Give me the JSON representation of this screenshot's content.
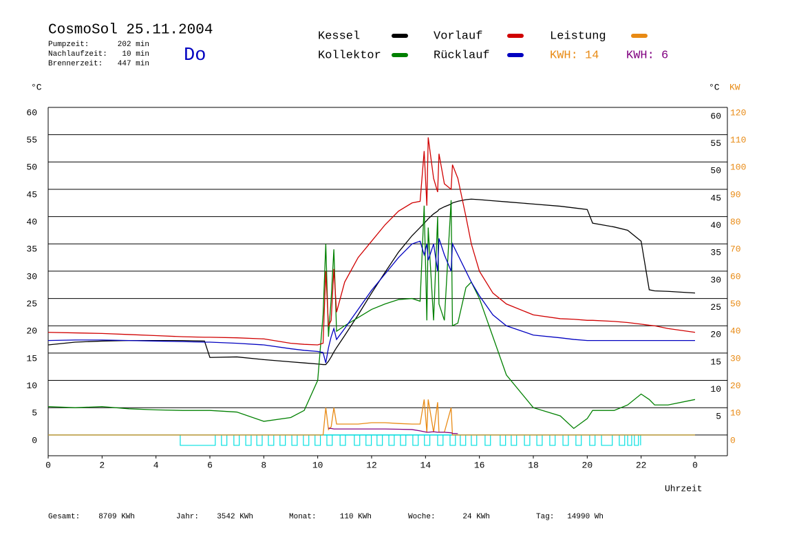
{
  "chart_data": {
    "type": "line",
    "title": "CosmoSol 25.11.2004",
    "weekday": "Do",
    "info": [
      [
        "Pumpzeit:",
        "202 min"
      ],
      [
        "Nachlaufzeit:",
        "10 min"
      ],
      [
        "Brennerzeit:",
        "447 min"
      ]
    ],
    "y_label": "°C",
    "y2_label_left": "°C",
    "y2_label": "KW",
    "x_label": "Uhrzeit",
    "energy_labels": [
      {
        "text": "KWH: 14",
        "color": "#e88a14"
      },
      {
        "text": "KWH: 6",
        "color": "#800080"
      }
    ],
    "footer": [
      [
        "Gesamt:",
        "8709 KWh"
      ],
      [
        "Jahr:",
        "3542 KWh"
      ],
      [
        "Monat:",
        "110 KWh"
      ],
      [
        "Woche:",
        "24 KWh"
      ],
      [
        "Tag:",
        "14990 Wh"
      ]
    ],
    "xlim": [
      0,
      24
    ],
    "xticks": [
      0,
      2,
      4,
      6,
      8,
      10,
      12,
      14,
      16,
      18,
      20,
      22,
      {
        "value": 24,
        "label": "0"
      }
    ],
    "ylim": [
      -3.8,
      60
    ],
    "yticks": [
      0,
      5,
      10,
      15,
      20,
      25,
      30,
      35,
      40,
      45,
      50,
      55,
      60
    ],
    "y2lim": [
      -7.6,
      120
    ],
    "y2ticks": [
      0,
      10,
      20,
      30,
      40,
      50,
      60,
      70,
      80,
      90,
      100,
      110,
      120
    ],
    "grid": true,
    "x": [
      0,
      1,
      2,
      3,
      4,
      5,
      5.8,
      6,
      7,
      8,
      9,
      9.5,
      10,
      10.2,
      10.3,
      10.4,
      10.5,
      10.6,
      10.7,
      11,
      11.5,
      12,
      12.5,
      13,
      13.5,
      13.8,
      13.95,
      14.05,
      14.1,
      14.3,
      14.45,
      14.5,
      14.7,
      14.95,
      15.0,
      15.2,
      15.5,
      15.7,
      16,
      16.5,
      17,
      18,
      19,
      19.5,
      20,
      20.2,
      21,
      21.5,
      22,
      22.3,
      22.5,
      23,
      24
    ],
    "series": [
      {
        "name": "Kessel",
        "color": "#000000",
        "values": [
          16.5,
          17,
          17.2,
          17.3,
          17.3,
          17.3,
          17.2,
          14.2,
          14.3,
          13.8,
          13.4,
          13.2,
          13,
          12.9,
          12.9,
          13.5,
          14.3,
          15.2,
          16,
          18.2,
          22,
          26,
          29.8,
          33.5,
          36.5,
          38,
          38.8,
          39.3,
          39.6,
          40.5,
          41,
          41.3,
          41.8,
          42.3,
          42.5,
          42.8,
          43.1,
          43.2,
          43.1,
          42.9,
          42.7,
          42.3,
          41.9,
          41.6,
          41.3,
          38.8,
          38.1,
          37.5,
          35.5,
          26.6,
          26.4,
          26.3,
          26.0
        ]
      },
      {
        "name": "Kollektor",
        "color": "#008000",
        "values": [
          5.2,
          5,
          5.2,
          4.8,
          4.6,
          4.5,
          4.5,
          4.5,
          4.2,
          2.5,
          3.2,
          4.5,
          10,
          22,
          35,
          18,
          25,
          34,
          19,
          20,
          21.5,
          23,
          24,
          24.8,
          25,
          24.5,
          42,
          21,
          38,
          21,
          40,
          24,
          21,
          43,
          20,
          20.5,
          27,
          28,
          25,
          18,
          11,
          5,
          3.5,
          1.2,
          3,
          4.5,
          4.5,
          5.5,
          7.5,
          6.5,
          5.5,
          5.5,
          6.5
        ]
      },
      {
        "name": "Vorlauf",
        "color": "#d00000",
        "values": [
          18.8,
          18.7,
          18.6,
          18.4,
          18.2,
          18.0,
          17.9,
          17.9,
          17.8,
          17.6,
          16.8,
          16.6,
          16.5,
          16.8,
          30,
          20,
          21,
          30.4,
          22.5,
          28,
          32.5,
          35.5,
          38.5,
          41,
          42.5,
          42.8,
          52,
          42,
          54.5,
          47,
          44.5,
          51.5,
          46,
          45,
          49.5,
          47,
          40,
          35,
          30,
          26,
          24,
          22,
          21.3,
          21.2,
          21,
          21,
          20.8,
          20.6,
          20.3,
          20.1,
          20,
          19.5,
          18.8
        ]
      },
      {
        "name": "Rücklauf",
        "color": "#0000c0",
        "values": [
          17.3,
          17.4,
          17.4,
          17.3,
          17.2,
          17.1,
          17,
          17,
          16.8,
          16.5,
          15.8,
          15.5,
          15.3,
          15.1,
          13.2,
          16,
          18,
          19.5,
          17.5,
          19.5,
          23,
          26.5,
          29.5,
          32.5,
          35,
          35.5,
          33,
          35,
          32,
          35,
          30,
          36,
          33,
          30,
          35,
          33,
          30,
          28,
          25.5,
          22,
          20,
          18.3,
          17.8,
          17.5,
          17.3,
          17.3,
          17.3,
          17.3,
          17.3,
          17.3,
          17.3,
          17.3,
          17.3
        ]
      },
      {
        "name": "Leistung",
        "color": "#e88a14",
        "axis": "y2",
        "values": [
          0,
          0,
          0,
          0,
          0,
          0,
          0,
          0,
          0,
          0,
          0,
          0,
          0,
          0,
          10,
          2,
          3,
          10,
          4,
          4,
          4,
          4.5,
          4.5,
          4.2,
          4,
          4,
          13,
          1,
          13,
          1,
          12,
          1,
          1,
          10,
          0,
          0,
          0,
          0,
          0,
          0,
          0,
          0,
          0,
          0,
          0,
          0,
          0,
          0,
          0,
          0,
          0,
          0,
          0
        ]
      },
      {
        "color": "#800080",
        "axis": "y2",
        "values": [
          null,
          null,
          null,
          null,
          null,
          null,
          null,
          null,
          null,
          null,
          null,
          null,
          null,
          null,
          null,
          2.5,
          2.4,
          2.2,
          2.2,
          2.2,
          2.2,
          2.2,
          2.2,
          2.1,
          2,
          1.5,
          1.2,
          1,
          1,
          1.2,
          1,
          1,
          1,
          0.8,
          0.6,
          0.5,
          null,
          null,
          null,
          null,
          null,
          null,
          null,
          null,
          null,
          null,
          null,
          null,
          null,
          null,
          null,
          null,
          null
        ]
      }
    ],
    "pump": {
      "color": "#00e0e0",
      "level": -1.9,
      "intervals": [
        [
          4.9,
          6.2
        ],
        [
          6.43,
          6.63
        ],
        [
          6.89,
          7.09
        ],
        [
          7.33,
          7.53
        ],
        [
          7.74,
          7.94
        ],
        [
          8.17,
          8.37
        ],
        [
          8.6,
          8.8
        ],
        [
          9.04,
          9.24
        ],
        [
          9.47,
          9.67
        ],
        [
          9.9,
          10.1
        ],
        [
          10.34,
          10.54
        ],
        [
          10.83,
          11.03
        ],
        [
          11.36,
          11.56
        ],
        [
          11.79,
          11.99
        ],
        [
          12.2,
          12.4
        ],
        [
          12.64,
          12.84
        ],
        [
          13.07,
          13.27
        ],
        [
          13.53,
          13.73
        ],
        [
          13.96,
          14.16
        ],
        [
          14.45,
          14.65
        ],
        [
          14.91,
          15.11
        ],
        [
          15.29,
          15.49
        ],
        [
          15.7,
          15.9
        ],
        [
          16.21,
          16.41
        ],
        [
          16.77,
          16.97
        ],
        [
          17.18,
          17.38
        ],
        [
          17.67,
          17.87
        ],
        [
          18.13,
          18.33
        ],
        [
          18.61,
          18.81
        ],
        [
          19.1,
          19.3
        ],
        [
          19.58,
          19.78
        ],
        [
          20.09,
          20.29
        ],
        [
          20.53,
          20.93
        ],
        [
          21.19,
          21.39
        ],
        [
          21.5,
          21.65
        ],
        [
          21.75,
          21.9
        ],
        [
          21.98,
          21.98
        ]
      ]
    }
  }
}
